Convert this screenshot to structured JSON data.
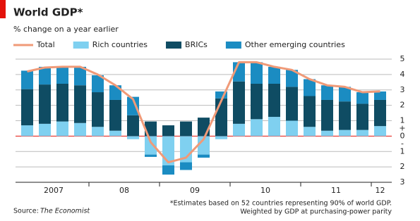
{
  "chart_data": {
    "type": "stacked-bar-line",
    "title": "World GDP*",
    "subtitle": "% change on a year earlier",
    "categories": [
      null,
      null,
      null,
      null,
      null,
      null,
      null,
      null,
      null,
      null,
      null,
      null,
      null,
      null,
      null,
      null,
      null,
      null,
      null,
      null,
      null
    ],
    "year_labels": [
      "2007",
      "08",
      "09",
      "10",
      "11",
      "12"
    ],
    "series": [
      {
        "name": "Total",
        "type": "line",
        "color": "#f09a78",
        "values": [
          4.2,
          4.45,
          4.5,
          4.5,
          4.0,
          3.3,
          2.4,
          -0.4,
          -1.7,
          -1.4,
          -0.2,
          2.3,
          4.8,
          4.8,
          4.5,
          4.3,
          3.7,
          3.3,
          3.2,
          2.85,
          2.9
        ]
      },
      {
        "name": "Rich countries",
        "type": "bar",
        "color": "#7fd0f0",
        "values": [
          0.7,
          0.8,
          0.95,
          0.85,
          0.6,
          0.35,
          -0.2,
          -1.2,
          -1.9,
          -1.7,
          -1.2,
          -0.2,
          0.8,
          1.1,
          1.25,
          1.0,
          0.6,
          0.35,
          0.4,
          0.4,
          0.65
        ]
      },
      {
        "name": "BRICs",
        "type": "bar",
        "color": "#0f4c63",
        "values": [
          2.35,
          2.55,
          2.45,
          2.45,
          2.25,
          2.0,
          1.35,
          0.95,
          0.7,
          0.95,
          1.2,
          2.45,
          2.75,
          2.3,
          2.15,
          2.2,
          2.0,
          2.0,
          1.85,
          1.7,
          1.7
        ]
      },
      {
        "name": "Other emerging countries",
        "type": "bar",
        "color": "#1b8cc2",
        "values": [
          1.2,
          1.15,
          1.1,
          1.2,
          1.1,
          0.95,
          1.2,
          -0.15,
          -0.6,
          -0.5,
          -0.2,
          0.45,
          1.25,
          1.4,
          1.1,
          1.1,
          1.1,
          0.95,
          0.95,
          0.75,
          0.55
        ]
      }
    ],
    "ylim": [
      -3,
      5
    ],
    "yticks": [
      5,
      4,
      3,
      2,
      1,
      0,
      {
        "value": -1,
        "label": "1"
      },
      {
        "value": -2,
        "label": "2"
      },
      {
        "value": -3,
        "label": "3"
      }
    ],
    "sign_labels": [
      "+",
      "-"
    ],
    "grid": true,
    "source_label": "Source:",
    "source": "The Economist",
    "footnotes": [
      "*Estimates based on 52 countries representing 90% of world GDP.",
      "Weighted by GDP at purchasing-power parity"
    ]
  }
}
